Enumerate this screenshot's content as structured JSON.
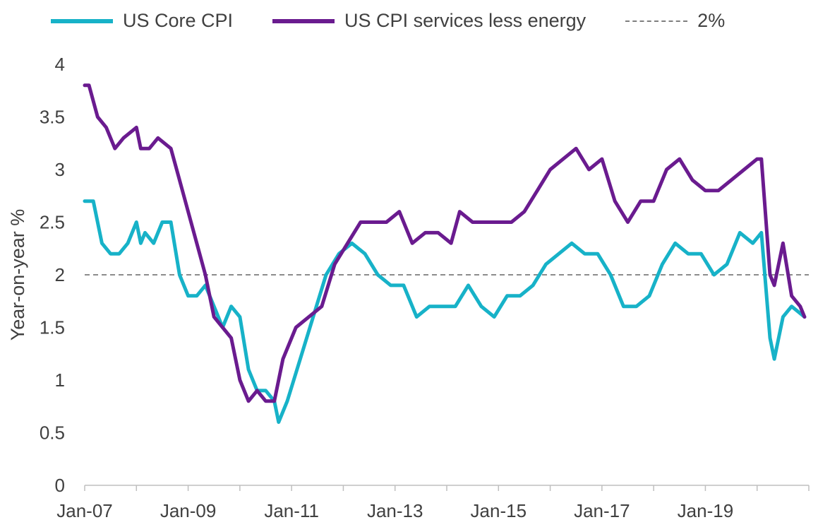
{
  "chart_data": {
    "type": "line",
    "ylabel": "Year-on-year  %",
    "xlabel": "",
    "ylim": [
      0,
      4
    ],
    "yticks": [
      0,
      0.5,
      1,
      1.5,
      2,
      2.5,
      3,
      3.5,
      4
    ],
    "ytick_labels": [
      "0",
      "0.5",
      "1",
      "1.5",
      "2",
      "2.5",
      "3",
      "3.5",
      "4"
    ],
    "xlim": [
      "2007-01",
      "2021-01"
    ],
    "xticks": [
      "2007-01",
      "2009-01",
      "2011-01",
      "2013-01",
      "2015-01",
      "2017-01",
      "2019-01"
    ],
    "xtick_labels": [
      "Jan-07",
      "Jan-09",
      "Jan-11",
      "Jan-13",
      "Jan-15",
      "Jan-17",
      "Jan-19"
    ],
    "grid": false,
    "legend_position": "top",
    "reference_line": {
      "name": "2%",
      "y": 2,
      "color": "#8c8c8c",
      "style": "dashed"
    },
    "series": [
      {
        "name": "US Core CPI",
        "color": "#17b2c8",
        "points": [
          [
            "2007-01",
            2.7
          ],
          [
            "2007-03",
            2.7
          ],
          [
            "2007-05",
            2.3
          ],
          [
            "2007-07",
            2.2
          ],
          [
            "2007-09",
            2.2
          ],
          [
            "2007-11",
            2.3
          ],
          [
            "2008-01",
            2.5
          ],
          [
            "2008-02",
            2.3
          ],
          [
            "2008-03",
            2.4
          ],
          [
            "2008-05",
            2.3
          ],
          [
            "2008-07",
            2.5
          ],
          [
            "2008-09",
            2.5
          ],
          [
            "2008-11",
            2.0
          ],
          [
            "2009-01",
            1.8
          ],
          [
            "2009-03",
            1.8
          ],
          [
            "2009-05",
            1.9
          ],
          [
            "2009-07",
            1.7
          ],
          [
            "2009-09",
            1.5
          ],
          [
            "2009-11",
            1.7
          ],
          [
            "2010-01",
            1.6
          ],
          [
            "2010-03",
            1.1
          ],
          [
            "2010-05",
            0.9
          ],
          [
            "2010-07",
            0.9
          ],
          [
            "2010-09",
            0.8
          ],
          [
            "2010-10",
            0.6
          ],
          [
            "2010-12",
            0.8
          ],
          [
            "2011-03",
            1.2
          ],
          [
            "2011-06",
            1.6
          ],
          [
            "2011-09",
            2.0
          ],
          [
            "2011-12",
            2.2
          ],
          [
            "2012-03",
            2.3
          ],
          [
            "2012-06",
            2.2
          ],
          [
            "2012-09",
            2.0
          ],
          [
            "2012-12",
            1.9
          ],
          [
            "2013-03",
            1.9
          ],
          [
            "2013-06",
            1.6
          ],
          [
            "2013-09",
            1.7
          ],
          [
            "2013-12",
            1.7
          ],
          [
            "2014-03",
            1.7
          ],
          [
            "2014-06",
            1.9
          ],
          [
            "2014-09",
            1.7
          ],
          [
            "2014-12",
            1.6
          ],
          [
            "2015-03",
            1.8
          ],
          [
            "2015-06",
            1.8
          ],
          [
            "2015-09",
            1.9
          ],
          [
            "2015-12",
            2.1
          ],
          [
            "2016-03",
            2.2
          ],
          [
            "2016-06",
            2.3
          ],
          [
            "2016-09",
            2.2
          ],
          [
            "2016-12",
            2.2
          ],
          [
            "2017-03",
            2.0
          ],
          [
            "2017-06",
            1.7
          ],
          [
            "2017-09",
            1.7
          ],
          [
            "2017-12",
            1.8
          ],
          [
            "2018-03",
            2.1
          ],
          [
            "2018-06",
            2.3
          ],
          [
            "2018-09",
            2.2
          ],
          [
            "2018-12",
            2.2
          ],
          [
            "2019-03",
            2.0
          ],
          [
            "2019-06",
            2.1
          ],
          [
            "2019-09",
            2.4
          ],
          [
            "2019-12",
            2.3
          ],
          [
            "2020-02",
            2.4
          ],
          [
            "2020-04",
            1.4
          ],
          [
            "2020-05",
            1.2
          ],
          [
            "2020-07",
            1.6
          ],
          [
            "2020-09",
            1.7
          ],
          [
            "2020-12",
            1.6
          ]
        ]
      },
      {
        "name": "US CPI services less energy",
        "color": "#6a1b8f",
        "points": [
          [
            "2007-01",
            3.8
          ],
          [
            "2007-02",
            3.8
          ],
          [
            "2007-04",
            3.5
          ],
          [
            "2007-06",
            3.4
          ],
          [
            "2007-08",
            3.2
          ],
          [
            "2007-10",
            3.3
          ],
          [
            "2008-01",
            3.4
          ],
          [
            "2008-02",
            3.2
          ],
          [
            "2008-04",
            3.2
          ],
          [
            "2008-06",
            3.3
          ],
          [
            "2008-09",
            3.2
          ],
          [
            "2008-11",
            2.9
          ],
          [
            "2009-01",
            2.6
          ],
          [
            "2009-03",
            2.3
          ],
          [
            "2009-05",
            2.0
          ],
          [
            "2009-07",
            1.6
          ],
          [
            "2009-09",
            1.5
          ],
          [
            "2009-11",
            1.4
          ],
          [
            "2010-01",
            1.0
          ],
          [
            "2010-03",
            0.8
          ],
          [
            "2010-05",
            0.9
          ],
          [
            "2010-07",
            0.8
          ],
          [
            "2010-09",
            0.8
          ],
          [
            "2010-11",
            1.2
          ],
          [
            "2011-02",
            1.5
          ],
          [
            "2011-05",
            1.6
          ],
          [
            "2011-08",
            1.7
          ],
          [
            "2011-11",
            2.1
          ],
          [
            "2012-02",
            2.3
          ],
          [
            "2012-05",
            2.5
          ],
          [
            "2012-08",
            2.5
          ],
          [
            "2012-11",
            2.5
          ],
          [
            "2013-02",
            2.6
          ],
          [
            "2013-05",
            2.3
          ],
          [
            "2013-08",
            2.4
          ],
          [
            "2013-11",
            2.4
          ],
          [
            "2014-02",
            2.3
          ],
          [
            "2014-04",
            2.6
          ],
          [
            "2014-07",
            2.5
          ],
          [
            "2014-10",
            2.5
          ],
          [
            "2015-01",
            2.5
          ],
          [
            "2015-04",
            2.5
          ],
          [
            "2015-07",
            2.6
          ],
          [
            "2015-10",
            2.8
          ],
          [
            "2016-01",
            3.0
          ],
          [
            "2016-04",
            3.1
          ],
          [
            "2016-07",
            3.2
          ],
          [
            "2016-10",
            3.0
          ],
          [
            "2017-01",
            3.1
          ],
          [
            "2017-04",
            2.7
          ],
          [
            "2017-07",
            2.5
          ],
          [
            "2017-10",
            2.7
          ],
          [
            "2018-01",
            2.7
          ],
          [
            "2018-04",
            3.0
          ],
          [
            "2018-07",
            3.1
          ],
          [
            "2018-10",
            2.9
          ],
          [
            "2019-01",
            2.8
          ],
          [
            "2019-04",
            2.8
          ],
          [
            "2019-07",
            2.9
          ],
          [
            "2019-10",
            3.0
          ],
          [
            "2020-01",
            3.1
          ],
          [
            "2020-02",
            3.1
          ],
          [
            "2020-04",
            2.0
          ],
          [
            "2020-05",
            1.9
          ],
          [
            "2020-07",
            2.3
          ],
          [
            "2020-09",
            1.8
          ],
          [
            "2020-11",
            1.7
          ],
          [
            "2020-12",
            1.6
          ]
        ]
      }
    ]
  }
}
